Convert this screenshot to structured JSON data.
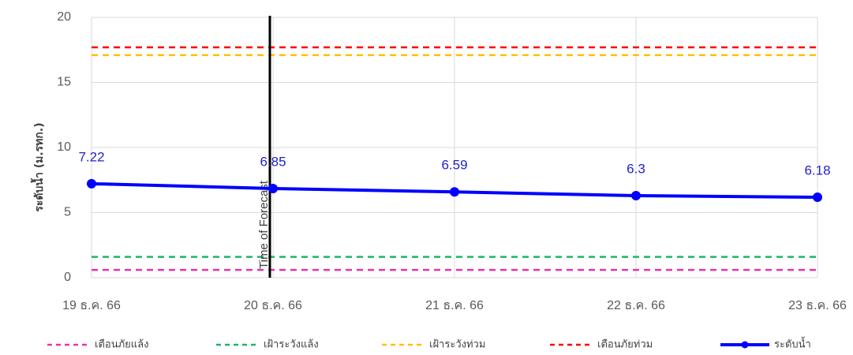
{
  "chart_data": {
    "type": "line",
    "title": "",
    "xlabel": "",
    "ylabel": "ระดับน้ำ (ม.รทก.)",
    "ylim": [
      0,
      20
    ],
    "yticks": [
      0,
      5,
      10,
      15,
      20
    ],
    "grid": true,
    "legend_position": "bottom",
    "categories": [
      "19 ธ.ค. 66",
      "20 ธ.ค. 66",
      "21 ธ.ค. 66",
      "22 ธ.ค. 66",
      "23 ธ.ค. 66"
    ],
    "series": [
      {
        "name": "ระดับน้ำ",
        "values": [
          7.22,
          6.85,
          6.59,
          6.3,
          6.18
        ],
        "color": "#0000ff",
        "style": "solid-marker",
        "data_labels": [
          "7.22",
          "6.85",
          "6.59",
          "6.3",
          "6.18"
        ]
      }
    ],
    "reference_lines": [
      {
        "name": "เตือนภัยแล้ง",
        "value": 0.6,
        "color": "#e535ab"
      },
      {
        "name": "เฝ้าระวังแล้ง",
        "value": 1.6,
        "color": "#1fb46a"
      },
      {
        "name": "เฝ้าระวังท่วม",
        "value": 17.1,
        "color": "#ffc000"
      },
      {
        "name": "เตือนภัยท่วม",
        "value": 17.7,
        "color": "#ff0000"
      }
    ],
    "forecast_marker": {
      "label": "Time of Forecast",
      "category": "20 ธ.ค. 66",
      "color": "#000000"
    },
    "legend_order": [
      "เตือนภัยแล้ง",
      "เฝ้าระวังแล้ง",
      "เฝ้าระวังท่วม",
      "เตือนภัยท่วม",
      "ระดับน้ำ"
    ]
  }
}
